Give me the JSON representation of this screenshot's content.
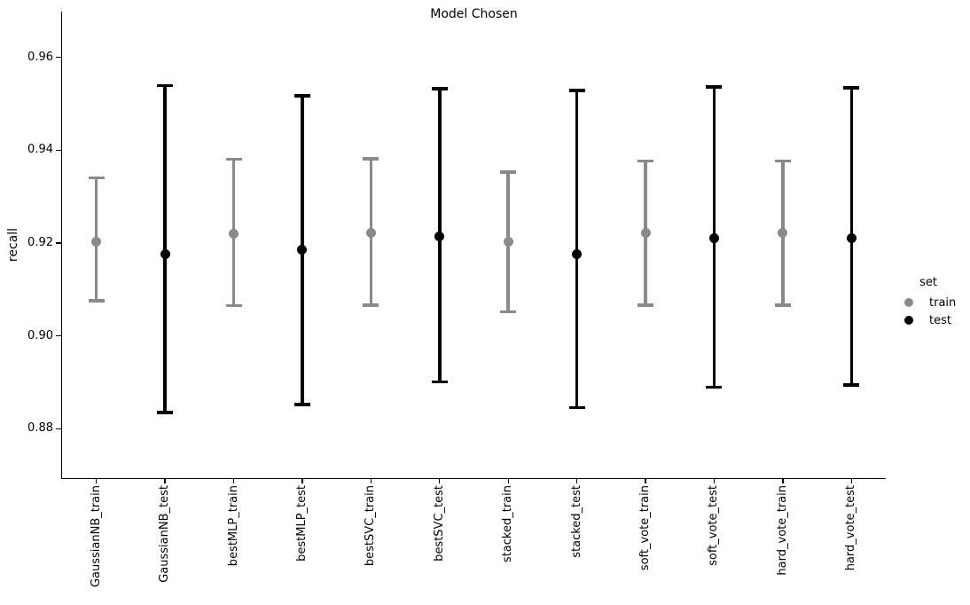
{
  "title": "Model Chosen",
  "ylabel": "recall",
  "legend": {
    "title": "set",
    "items": [
      {
        "label": "train",
        "color": "#8a8a8a"
      },
      {
        "label": "test",
        "color": "#000000"
      }
    ]
  },
  "colors": {
    "train": "#8a8a8a",
    "test": "#000000",
    "axis": "#000000",
    "background": "#ffffff"
  },
  "chart_data": {
    "type": "scatter",
    "style": "pointplot-with-errorbars",
    "title": "Model Chosen",
    "xlabel": "",
    "ylabel": "recall",
    "grid": false,
    "legend_position": "center right",
    "ylim": [
      0.8695,
      0.9699
    ],
    "yticks": [
      {
        "value": 0.88,
        "label": "0.88"
      },
      {
        "value": 0.9,
        "label": "0.90"
      },
      {
        "value": 0.92,
        "label": "0.92"
      },
      {
        "value": 0.94,
        "label": "0.94"
      },
      {
        "value": 0.96,
        "label": "0.96"
      }
    ],
    "categories": [
      "GaussianNB_train",
      "GaussianNB_test",
      "bestMLP_train",
      "bestMLP_test",
      "bestSVC_train",
      "bestSVC_test",
      "stacked_train",
      "stacked_test",
      "soft_vote_train",
      "soft_vote_test",
      "hard_vote_train",
      "hard_vote_test"
    ],
    "series": [
      {
        "name": "train",
        "color": "#8a8a8a",
        "points": [
          {
            "index": 0,
            "category": "GaussianNB_train",
            "y": 0.9203,
            "lo": 0.9076,
            "hi": 0.934
          },
          {
            "index": 2,
            "category": "bestMLP_train",
            "y": 0.922,
            "lo": 0.9065,
            "hi": 0.938
          },
          {
            "index": 4,
            "category": "bestSVC_train",
            "y": 0.9222,
            "lo": 0.9066,
            "hi": 0.9381
          },
          {
            "index": 6,
            "category": "stacked_train",
            "y": 0.9203,
            "lo": 0.9052,
            "hi": 0.9353
          },
          {
            "index": 8,
            "category": "soft_vote_train",
            "y": 0.9221,
            "lo": 0.9066,
            "hi": 0.9377
          },
          {
            "index": 10,
            "category": "hard_vote_train",
            "y": 0.9221,
            "lo": 0.9066,
            "hi": 0.9377
          }
        ]
      },
      {
        "name": "test",
        "color": "#000000",
        "points": [
          {
            "index": 1,
            "category": "GaussianNB_test",
            "y": 0.9176,
            "lo": 0.8835,
            "hi": 0.9539
          },
          {
            "index": 3,
            "category": "bestMLP_test",
            "y": 0.9185,
            "lo": 0.8852,
            "hi": 0.9517
          },
          {
            "index": 5,
            "category": "bestSVC_test",
            "y": 0.9215,
            "lo": 0.8901,
            "hi": 0.9532
          },
          {
            "index": 7,
            "category": "stacked_test",
            "y": 0.9176,
            "lo": 0.8846,
            "hi": 0.9528
          },
          {
            "index": 9,
            "category": "soft_vote_test",
            "y": 0.921,
            "lo": 0.8889,
            "hi": 0.9536
          },
          {
            "index": 11,
            "category": "hard_vote_test",
            "y": 0.9211,
            "lo": 0.8894,
            "hi": 0.9534
          }
        ]
      }
    ]
  }
}
